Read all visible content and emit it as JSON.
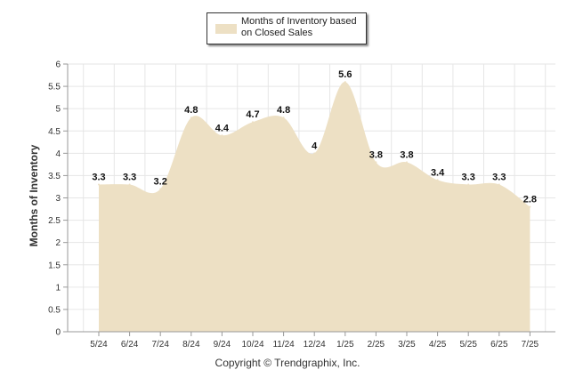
{
  "chart_data": {
    "type": "area",
    "categories": [
      "5/24",
      "6/24",
      "7/24",
      "8/24",
      "9/24",
      "10/24",
      "11/24",
      "12/24",
      "1/25",
      "2/25",
      "3/25",
      "4/25",
      "5/25",
      "6/25",
      "7/25"
    ],
    "series": [
      {
        "name": "Months of Inventory based on Closed Sales",
        "values": [
          3.3,
          3.3,
          3.2,
          4.8,
          4.4,
          4.7,
          4.8,
          4,
          5.6,
          3.8,
          3.8,
          3.4,
          3.3,
          3.3,
          2.8
        ]
      }
    ],
    "data_labels": [
      "3.3",
      "3.3",
      "3.2",
      "4.8",
      "4.4",
      "4.7",
      "4.8",
      "4",
      "5.6",
      "3.8",
      "3.8",
      "3.4",
      "3.3",
      "3.3",
      "2.8"
    ],
    "ylabel": "Months of Inventory",
    "ylim": [
      0,
      6
    ],
    "yticks": [
      "0",
      "0.5",
      "1",
      "1.5",
      "2",
      "2.5",
      "3",
      "3.5",
      "4",
      "4.5",
      "5",
      "5.5",
      "6"
    ],
    "grid": true,
    "legend_position": "top-center",
    "fill_color": "#ede0c4",
    "grid_color": "#e6e6e6"
  },
  "legend": {
    "label": "Months of Inventory based on Closed Sales"
  },
  "footer": {
    "copyright": "Copyright © Trendgraphix, Inc."
  }
}
